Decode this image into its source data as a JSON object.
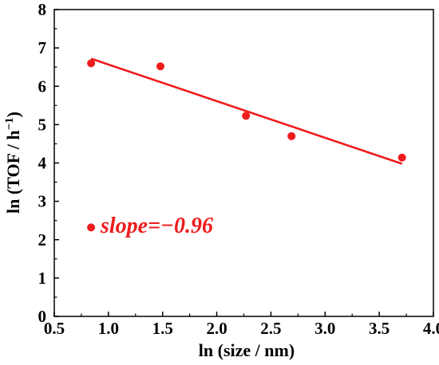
{
  "chart_data": {
    "type": "scatter",
    "xlabel": "ln (size / nm)",
    "ylabel_main": "ln (TOF / h",
    "ylabel_sup": "−1",
    "ylabel_close": ")",
    "xlim": [
      0.5,
      4.0
    ],
    "ylim": [
      0,
      8
    ],
    "xticks": [
      "0.5",
      "1.0",
      "1.5",
      "2.0",
      "2.5",
      "3.0",
      "3.5",
      "4.0"
    ],
    "yticks": [
      "0",
      "1",
      "2",
      "3",
      "4",
      "5",
      "6",
      "7",
      "8"
    ],
    "grid": false,
    "series": [
      {
        "points": [
          {
            "x": 0.84,
            "y": 6.6
          },
          {
            "x": 1.48,
            "y": 6.52
          },
          {
            "x": 2.27,
            "y": 5.23
          },
          {
            "x": 2.69,
            "y": 4.7
          },
          {
            "x": 3.71,
            "y": 4.14
          }
        ]
      }
    ],
    "fit_line": {
      "x": [
        0.84,
        3.71
      ],
      "y": [
        6.72,
        3.98
      ]
    },
    "annotation": {
      "marker": {
        "x": 0.84,
        "y": 2.32
      },
      "text": "slope=−0.96"
    },
    "color": "#ee1c1c"
  }
}
